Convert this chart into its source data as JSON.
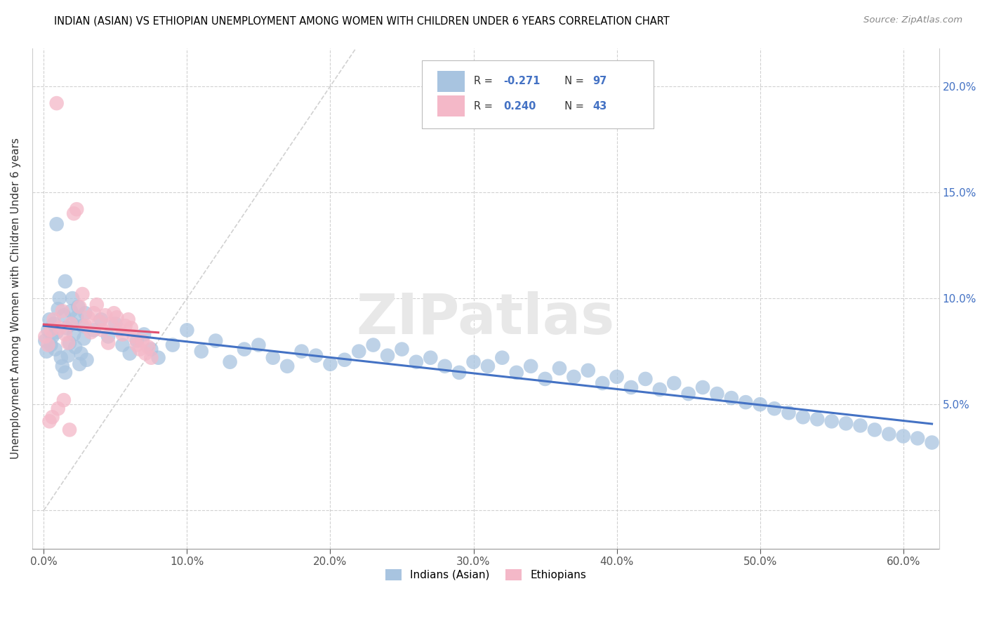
{
  "title": "INDIAN (ASIAN) VS ETHIOPIAN UNEMPLOYMENT AMONG WOMEN WITH CHILDREN UNDER 6 YEARS CORRELATION CHART",
  "source": "Source: ZipAtlas.com",
  "ylabel": "Unemployment Among Women with Children Under 6 years",
  "xlim": [
    -0.008,
    0.625
  ],
  "ylim": [
    -0.018,
    0.218
  ],
  "indian_color": "#a8c4e0",
  "ethiopian_color": "#f4b8c8",
  "indian_R": -0.271,
  "indian_N": 97,
  "ethiopian_R": 0.24,
  "ethiopian_N": 43,
  "legend_label_indian": "Indians (Asian)",
  "legend_label_ethiopian": "Ethiopians",
  "watermark": "ZIPatlas",
  "diagonal_line_color": "#cccccc",
  "indian_line_color": "#4472c4",
  "ethiopian_line_color": "#e05070",
  "indian_x": [
    0.001,
    0.002,
    0.003,
    0.004,
    0.005,
    0.006,
    0.007,
    0.008,
    0.009,
    0.01,
    0.011,
    0.012,
    0.013,
    0.014,
    0.015,
    0.016,
    0.017,
    0.018,
    0.019,
    0.02,
    0.021,
    0.022,
    0.023,
    0.024,
    0.025,
    0.026,
    0.027,
    0.028,
    0.029,
    0.03,
    0.035,
    0.04,
    0.045,
    0.05,
    0.055,
    0.06,
    0.065,
    0.07,
    0.075,
    0.08,
    0.09,
    0.1,
    0.11,
    0.12,
    0.13,
    0.14,
    0.15,
    0.16,
    0.17,
    0.18,
    0.19,
    0.2,
    0.21,
    0.22,
    0.23,
    0.24,
    0.25,
    0.26,
    0.27,
    0.28,
    0.29,
    0.3,
    0.31,
    0.32,
    0.33,
    0.34,
    0.35,
    0.36,
    0.37,
    0.38,
    0.39,
    0.4,
    0.41,
    0.42,
    0.43,
    0.44,
    0.45,
    0.46,
    0.47,
    0.48,
    0.49,
    0.5,
    0.51,
    0.52,
    0.53,
    0.54,
    0.55,
    0.56,
    0.57,
    0.58,
    0.59,
    0.6,
    0.61,
    0.62,
    0.009,
    0.015,
    0.02
  ],
  "indian_y": [
    0.08,
    0.075,
    0.085,
    0.09,
    0.078,
    0.082,
    0.088,
    0.076,
    0.084,
    0.095,
    0.1,
    0.072,
    0.068,
    0.092,
    0.065,
    0.086,
    0.073,
    0.079,
    0.094,
    0.088,
    0.083,
    0.077,
    0.091,
    0.096,
    0.069,
    0.074,
    0.087,
    0.081,
    0.093,
    0.071,
    0.085,
    0.09,
    0.082,
    0.088,
    0.078,
    0.074,
    0.08,
    0.083,
    0.076,
    0.072,
    0.078,
    0.085,
    0.075,
    0.08,
    0.07,
    0.076,
    0.078,
    0.072,
    0.068,
    0.075,
    0.073,
    0.069,
    0.071,
    0.075,
    0.078,
    0.073,
    0.076,
    0.07,
    0.072,
    0.068,
    0.065,
    0.07,
    0.068,
    0.072,
    0.065,
    0.068,
    0.062,
    0.067,
    0.063,
    0.066,
    0.06,
    0.063,
    0.058,
    0.062,
    0.057,
    0.06,
    0.055,
    0.058,
    0.055,
    0.053,
    0.051,
    0.05,
    0.048,
    0.046,
    0.044,
    0.043,
    0.042,
    0.041,
    0.04,
    0.038,
    0.036,
    0.035,
    0.034,
    0.032,
    0.135,
    0.108,
    0.1
  ],
  "ethiopian_x": [
    0.001,
    0.003,
    0.005,
    0.007,
    0.009,
    0.011,
    0.013,
    0.015,
    0.017,
    0.019,
    0.021,
    0.023,
    0.025,
    0.027,
    0.029,
    0.031,
    0.033,
    0.035,
    0.037,
    0.039,
    0.041,
    0.043,
    0.045,
    0.047,
    0.049,
    0.051,
    0.053,
    0.055,
    0.057,
    0.059,
    0.061,
    0.063,
    0.065,
    0.067,
    0.069,
    0.071,
    0.073,
    0.075,
    0.006,
    0.01,
    0.014,
    0.018,
    0.004
  ],
  "ethiopian_y": [
    0.082,
    0.078,
    0.085,
    0.09,
    0.192,
    0.086,
    0.094,
    0.083,
    0.079,
    0.088,
    0.14,
    0.142,
    0.096,
    0.102,
    0.087,
    0.091,
    0.084,
    0.093,
    0.097,
    0.089,
    0.085,
    0.092,
    0.079,
    0.088,
    0.093,
    0.091,
    0.085,
    0.083,
    0.087,
    0.09,
    0.086,
    0.082,
    0.078,
    0.076,
    0.08,
    0.074,
    0.077,
    0.072,
    0.044,
    0.048,
    0.052,
    0.038,
    0.042
  ]
}
